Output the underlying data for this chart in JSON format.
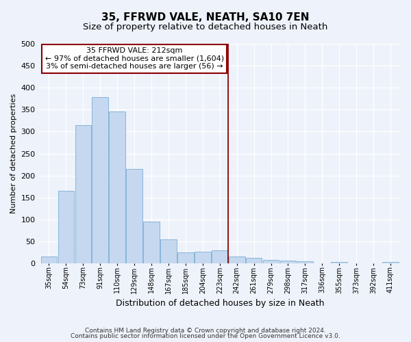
{
  "title": "35, FFRWD VALE, NEATH, SA10 7EN",
  "subtitle": "Size of property relative to detached houses in Neath",
  "xlabel": "Distribution of detached houses by size in Neath",
  "ylabel": "Number of detached properties",
  "categories": [
    "35sqm",
    "54sqm",
    "73sqm",
    "91sqm",
    "110sqm",
    "129sqm",
    "148sqm",
    "167sqm",
    "185sqm",
    "204sqm",
    "223sqm",
    "242sqm",
    "261sqm",
    "279sqm",
    "298sqm",
    "317sqm",
    "336sqm",
    "355sqm",
    "373sqm",
    "392sqm",
    "411sqm"
  ],
  "values": [
    15,
    165,
    315,
    378,
    346,
    215,
    95,
    55,
    25,
    27,
    29,
    15,
    12,
    8,
    6,
    5,
    0,
    3,
    0,
    0,
    3
  ],
  "bar_color": "#c5d8ef",
  "bar_edge_color": "#7aaed4",
  "vline_color": "#8b0000",
  "vline_x": 10.5,
  "annotation_line1": "35 FFRWD VALE: 212sqm",
  "annotation_line2": "← 97% of detached houses are smaller (1,604)",
  "annotation_line3": "3% of semi-detached houses are larger (56) →",
  "annotation_box_color": "#8b0000",
  "ylim": [
    0,
    500
  ],
  "background_color": "#eef2fa",
  "footer_line1": "Contains HM Land Registry data © Crown copyright and database right 2024.",
  "footer_line2": "Contains public sector information licensed under the Open Government Licence v3.0.",
  "title_fontsize": 11,
  "subtitle_fontsize": 9.5
}
